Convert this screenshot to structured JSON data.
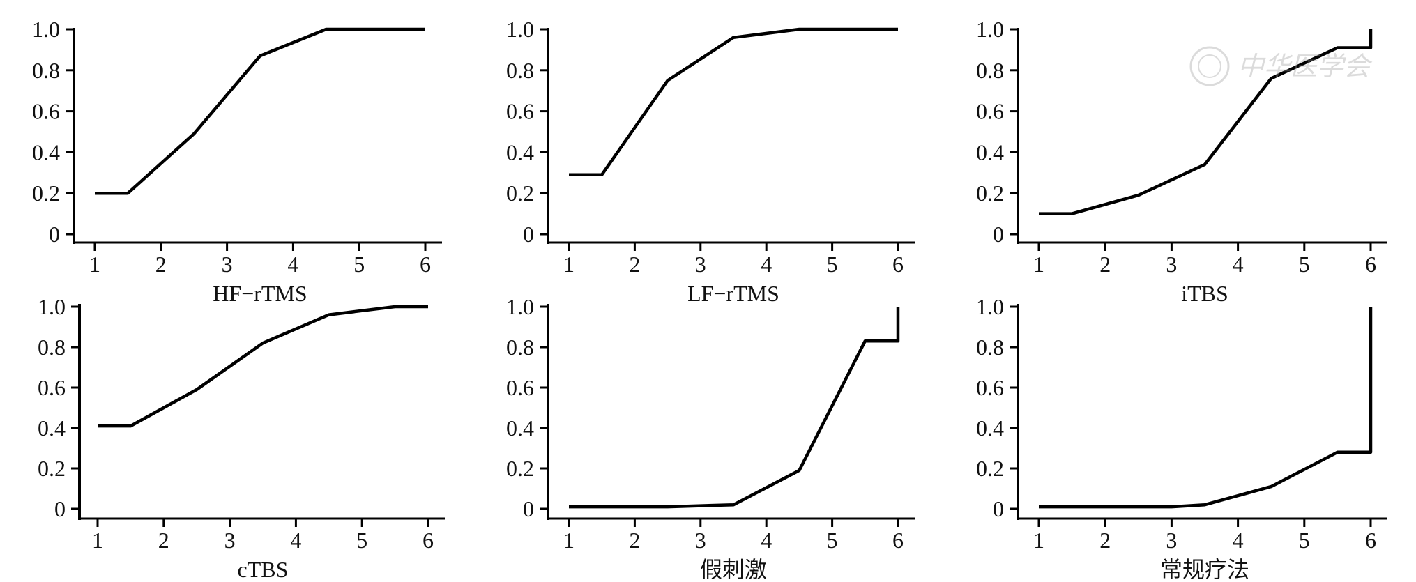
{
  "watermark": {
    "text": "中华医学会"
  },
  "chart_data": [
    {
      "type": "line",
      "xlabel": "HF−rTMS",
      "xlim": [
        1,
        6
      ],
      "ylim": [
        0,
        1
      ],
      "x_ticks": [
        "1",
        "2",
        "3",
        "4",
        "5",
        "6"
      ],
      "y_ticks": [
        "0",
        "0.2",
        "0.4",
        "0.6",
        "0.8",
        "1.0"
      ],
      "points": [
        [
          1,
          0.2
        ],
        [
          1.5,
          0.2
        ],
        [
          2.5,
          0.49
        ],
        [
          3.5,
          0.87
        ],
        [
          4.5,
          1.0
        ],
        [
          6,
          1.0
        ]
      ]
    },
    {
      "type": "line",
      "xlabel": "LF−rTMS",
      "xlim": [
        1,
        6
      ],
      "ylim": [
        0,
        1
      ],
      "x_ticks": [
        "1",
        "2",
        "3",
        "4",
        "5",
        "6"
      ],
      "y_ticks": [
        "0",
        "0.2",
        "0.4",
        "0.6",
        "0.8",
        "1.0"
      ],
      "points": [
        [
          1,
          0.29
        ],
        [
          1.5,
          0.29
        ],
        [
          2.5,
          0.75
        ],
        [
          3.5,
          0.96
        ],
        [
          4.5,
          1.0
        ],
        [
          6,
          1.0
        ]
      ]
    },
    {
      "type": "line",
      "xlabel": "iTBS",
      "xlim": [
        1,
        6
      ],
      "ylim": [
        0,
        1
      ],
      "x_ticks": [
        "1",
        "2",
        "3",
        "4",
        "5",
        "6"
      ],
      "y_ticks": [
        "0",
        "0.2",
        "0.4",
        "0.6",
        "0.8",
        "1.0"
      ],
      "points": [
        [
          1,
          0.1
        ],
        [
          1.5,
          0.1
        ],
        [
          2.5,
          0.19
        ],
        [
          3.5,
          0.34
        ],
        [
          4.5,
          0.76
        ],
        [
          5.5,
          0.91
        ],
        [
          6,
          0.91
        ],
        [
          6,
          1.0
        ]
      ]
    },
    {
      "type": "line",
      "xlabel": "cTBS",
      "xlim": [
        1,
        6
      ],
      "ylim": [
        0,
        1
      ],
      "x_ticks": [
        "1",
        "2",
        "3",
        "4",
        "5",
        "6"
      ],
      "y_ticks": [
        "0",
        "0.2",
        "0.4",
        "0.6",
        "0.8",
        "1.0"
      ],
      "points": [
        [
          1,
          0.41
        ],
        [
          1.5,
          0.41
        ],
        [
          2.5,
          0.59
        ],
        [
          3.5,
          0.82
        ],
        [
          4.5,
          0.96
        ],
        [
          5.5,
          1.0
        ],
        [
          6,
          1.0
        ]
      ]
    },
    {
      "type": "line",
      "xlabel": "假刺激",
      "xlim": [
        1,
        6
      ],
      "ylim": [
        0,
        1
      ],
      "x_ticks": [
        "1",
        "2",
        "3",
        "4",
        "5",
        "6"
      ],
      "y_ticks": [
        "0",
        "0.2",
        "0.4",
        "0.6",
        "0.8",
        "1.0"
      ],
      "points": [
        [
          1,
          0.01
        ],
        [
          2.5,
          0.01
        ],
        [
          3.5,
          0.02
        ],
        [
          4.5,
          0.19
        ],
        [
          5.5,
          0.83
        ],
        [
          6,
          0.83
        ],
        [
          6,
          1.0
        ]
      ]
    },
    {
      "type": "line",
      "xlabel": "常规疗法",
      "xlim": [
        1,
        6
      ],
      "ylim": [
        0,
        1
      ],
      "x_ticks": [
        "1",
        "2",
        "3",
        "4",
        "5",
        "6"
      ],
      "y_ticks": [
        "0",
        "0.2",
        "0.4",
        "0.6",
        "0.8",
        "1.0"
      ],
      "points": [
        [
          1,
          0.01
        ],
        [
          3,
          0.01
        ],
        [
          3.5,
          0.02
        ],
        [
          4.5,
          0.11
        ],
        [
          5.5,
          0.28
        ],
        [
          6,
          0.28
        ],
        [
          6,
          1.0
        ]
      ]
    }
  ]
}
